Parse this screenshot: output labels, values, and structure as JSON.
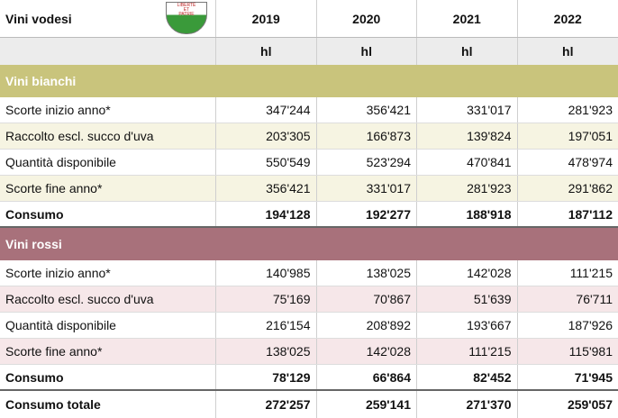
{
  "header": {
    "title": "Vini vodesi",
    "shield": [
      "LIBERTÉ",
      "ET",
      "PATRIE"
    ],
    "years": [
      "2019",
      "2020",
      "2021",
      "2022"
    ],
    "units": [
      "hl",
      "hl",
      "hl",
      "hl"
    ]
  },
  "sections": [
    {
      "name": "Vini bianchi",
      "rows": [
        {
          "label": "Scorte inizio anno*",
          "values": [
            "347'244",
            "356'421",
            "331'017",
            "281'923"
          ]
        },
        {
          "label": "Raccolto escl. succo d'uva",
          "values": [
            "203'305",
            "166'873",
            "139'824",
            "197'051"
          ]
        },
        {
          "label": "Quantità disponibile",
          "values": [
            "550'549",
            "523'294",
            "470'841",
            "478'974"
          ]
        },
        {
          "label": "Scorte fine anno*",
          "values": [
            "356'421",
            "331'017",
            "281'923",
            "291'862"
          ]
        },
        {
          "label": "Consumo",
          "values": [
            "194'128",
            "192'277",
            "188'918",
            "187'112"
          ]
        }
      ]
    },
    {
      "name": "Vini rossi",
      "rows": [
        {
          "label": "Scorte inizio anno*",
          "values": [
            "140'985",
            "138'025",
            "142'028",
            "111'215"
          ]
        },
        {
          "label": "Raccolto escl. succo d'uva",
          "values": [
            "75'169",
            "70'867",
            "51'639",
            "76'711"
          ]
        },
        {
          "label": "Quantità disponibile",
          "values": [
            "216'154",
            "208'892",
            "193'667",
            "187'926"
          ]
        },
        {
          "label": "Scorte fine anno*",
          "values": [
            "138'025",
            "142'028",
            "111'215",
            "115'981"
          ]
        },
        {
          "label": "Consumo",
          "values": [
            "78'129",
            "66'864",
            "82'452",
            "71'945"
          ]
        }
      ]
    }
  ],
  "total": {
    "label": "Consumo totale",
    "values": [
      "272'257",
      "259'141",
      "271'370",
      "259'057"
    ]
  }
}
